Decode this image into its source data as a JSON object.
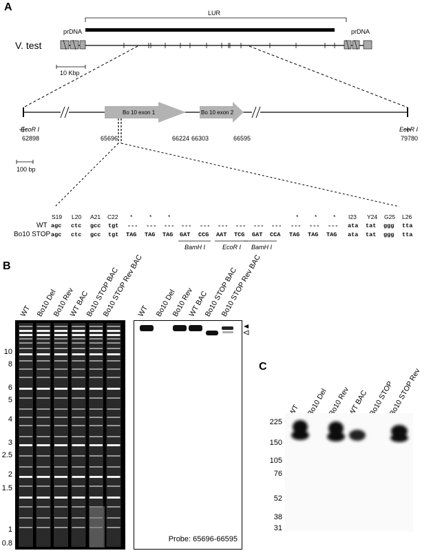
{
  "panel_a": {
    "letter": "A",
    "lur": "LUR",
    "prdna_left": "prDNA",
    "prdna_right": "prDNA",
    "strain": "V. test",
    "scale_top": "10 Kbp",
    "exon1": "Bo 10  exon 1",
    "exon2": "Bo 10  exon 2",
    "ecori_left": "EcoR I",
    "ecori_right": "EcoR I",
    "pos_62898": "62898",
    "pos_65696": "65696",
    "pos_66224": "66224",
    "pos_66303": "66303",
    "pos_66595": "66595",
    "pos_79780": "79780",
    "scale_bottom": "100 bp",
    "aa_labels": [
      "S19",
      "L20",
      "A21",
      "C22",
      "*",
      "*",
      "*",
      "*",
      "*",
      "*",
      "I23",
      "Y24",
      "G25",
      "L26"
    ],
    "wt_label": "WT",
    "stop_label": "Bo10 STOP",
    "wt_codons": [
      "agc",
      "ctc",
      "gcc",
      "tgt",
      "---",
      "---",
      "---",
      "---",
      "---",
      "---",
      "---",
      "---",
      "---",
      "---",
      "---",
      "---",
      "ata",
      "tat",
      "ggg",
      "tta"
    ],
    "stop_codons": [
      "agc",
      "ctc",
      "gcc",
      "tgt",
      "TAG",
      "TAG",
      "TAG",
      "GAT",
      "CCG",
      "AAT",
      "TCG",
      "GAT",
      "CCA",
      "TAG",
      "TAG",
      "TAG",
      "ata",
      "tat",
      "ggg",
      "tta"
    ],
    "site1": "BamH I",
    "site2": "EcoR I",
    "site3": "BamH I"
  },
  "panel_b": {
    "letter": "B",
    "gel_lanes": [
      "WT",
      "Bo10 Del",
      "Bo10 Rev",
      "WT BAC",
      "Bo10 STOP BAC",
      "Bo10 STOP Rev BAC"
    ],
    "blot_lanes": [
      "WT",
      "Bo10 Del",
      "Bo10 Rev",
      "WT BAC",
      "Bo10 STOP BAC",
      "Bo10 STOP Rev BAC"
    ],
    "markers": [
      "10",
      "8",
      "6",
      "5",
      "4",
      "3",
      "2.5",
      "2",
      "1.5",
      "1",
      "0.8"
    ],
    "probe": "Probe: 65696-66595"
  },
  "panel_c": {
    "letter": "C",
    "lanes": [
      "WT",
      "Bo10 Del",
      "Bo10 Rev",
      "WT BAC",
      "Bo10 STOP",
      "Bo10 STOP Rev"
    ],
    "markers": [
      "225",
      "150",
      "105",
      "76",
      "52",
      "38",
      "31"
    ]
  }
}
